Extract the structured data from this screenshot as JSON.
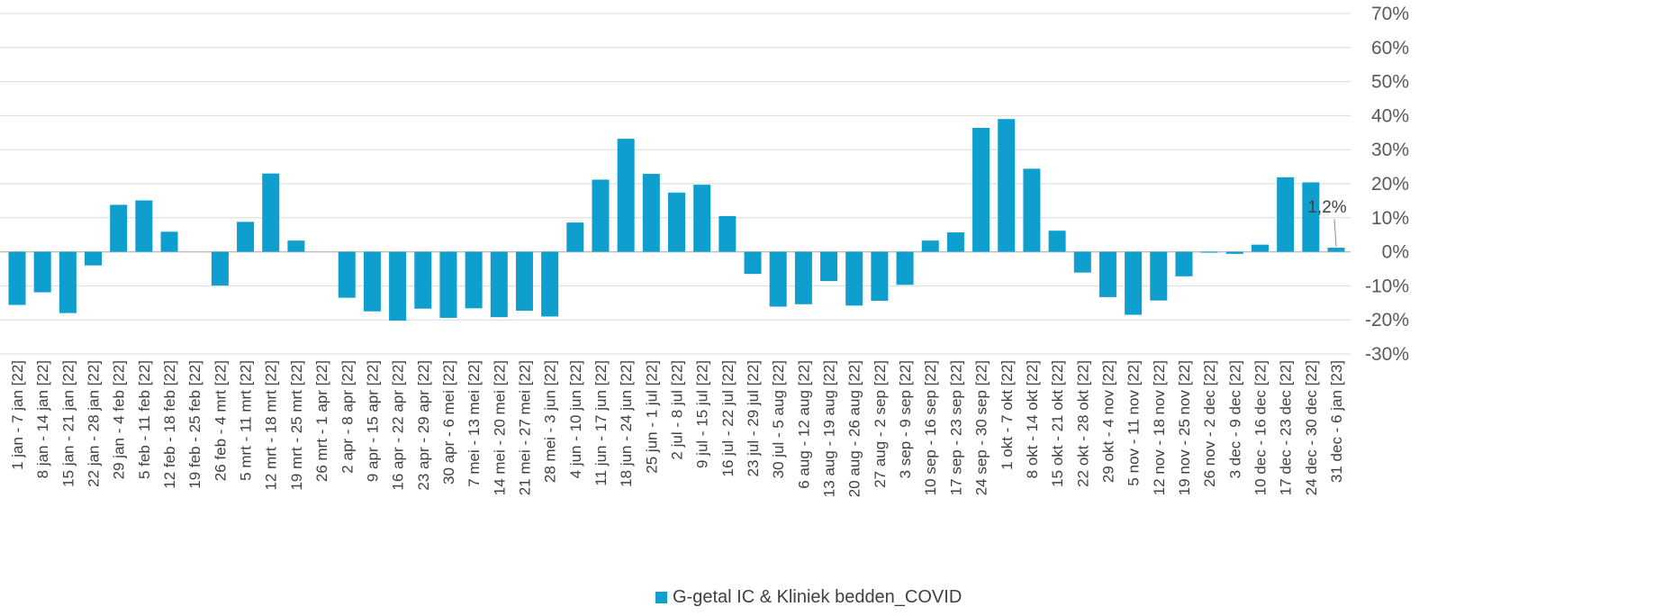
{
  "chart_data": {
    "type": "bar",
    "categories": [
      "1 jan - 7 jan [22]",
      "8 jan - 14 jan [22]",
      "15 jan - 21 jan [22]",
      "22 jan - 28 jan [22]",
      "29 jan - 4 feb [22]",
      "5 feb - 11 feb [22]",
      "12 feb - 18 feb [22]",
      "19 feb - 25 feb [22]",
      "26 feb - 4 mrt [22]",
      "5 mrt - 11 mrt [22]",
      "12 mrt - 18 mrt [22]",
      "19 mrt - 25 mrt [22]",
      "26 mrt - 1 apr [22]",
      "2 apr - 8 apr [22]",
      "9 apr - 15 apr [22]",
      "16 apr - 22 apr [22]",
      "23 apr - 29 apr [22]",
      "30 apr - 6 mei [22]",
      "7 mei - 13 mei [22]",
      "14 mei - 20 mei [22]",
      "21 mei - 27 mei [22]",
      "28 mei - 3 jun [22]",
      "4 jun - 10 jun [22]",
      "11 jun - 17 jun [22]",
      "18 jun - 24 jun [22]",
      "25 jun - 1 jul [22]",
      "2 jul - 8 jul [22]",
      "9 jul - 15 jul [22]",
      "16 jul - 22 jul [22]",
      "23 jul - 29 jul [22]",
      "30 jul - 5 aug [22]",
      "6 aug - 12 aug [22]",
      "13 aug - 19 aug [22]",
      "20 aug - 26 aug [22]",
      "27 aug - 2 sep [22]",
      "3 sep - 9 sep [22]",
      "10 sep - 16 sep [22]",
      "17 sep - 23 sep [22]",
      "24 sep - 30 sep [22]",
      "1 okt - 7 okt [22]",
      "8 okt - 14 okt [22]",
      "15 okt - 21 okt [22]",
      "22 okt - 28 okt [22]",
      "29 okt - 4 nov [22]",
      "5 nov - 11 nov [22]",
      "12 nov - 18 nov [22]",
      "19 nov - 25 nov [22]",
      "26 nov - 2 dec [22]",
      "3 dec - 9 dec [22]",
      "10 dec - 16 dec [22]",
      "17 dec - 23 dec [22]",
      "24 dec - 30 dec [22]",
      "31 dec - 6 jan [23]"
    ],
    "series": [
      {
        "name": "G-getal IC & Kliniek bedden_COVID",
        "color": "#0f9fcf",
        "values": [
          -15.6,
          -11.9,
          -18.0,
          -4.0,
          13.8,
          15.1,
          5.9,
          0.0,
          -9.9,
          8.8,
          23.0,
          3.3,
          0.0,
          -13.5,
          -17.5,
          -20.2,
          -16.7,
          -19.4,
          -16.6,
          -19.2,
          -17.3,
          -19.0,
          8.6,
          21.2,
          33.2,
          22.9,
          17.4,
          19.7,
          10.5,
          -6.5,
          -16.1,
          -15.4,
          -8.6,
          -15.8,
          -14.4,
          -9.7,
          3.3,
          5.7,
          36.4,
          39.0,
          24.4,
          6.2,
          -6.1,
          -13.3,
          -18.5,
          -14.3,
          -7.2,
          -0.2,
          -0.6,
          2.1,
          21.9,
          20.4,
          1.2
        ]
      }
    ],
    "ylim": [
      -30,
      70
    ],
    "yticks": [
      "-30%",
      "-20%",
      "-10%",
      "0%",
      "10%",
      "20%",
      "30%",
      "40%",
      "50%",
      "60%",
      "70%"
    ],
    "ytick_values": [
      -30,
      -20,
      -10,
      0,
      10,
      20,
      30,
      40,
      50,
      60,
      70
    ],
    "annotation": {
      "label": "1,2%",
      "category_index": 52
    },
    "grid": true,
    "legend": "bottom",
    "legend_label": "G-getal IC & Kliniek bedden_COVID",
    "title": "",
    "xlabel": "",
    "ylabel": ""
  }
}
